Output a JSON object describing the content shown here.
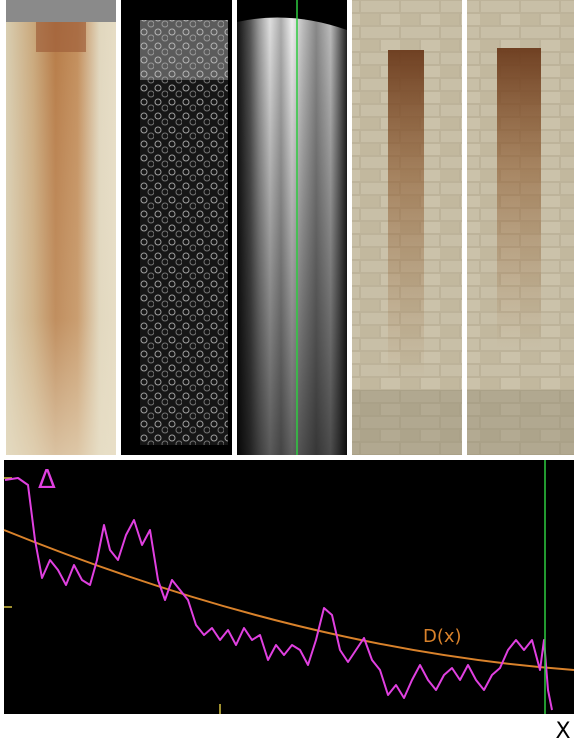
{
  "figure": {
    "labels": {
      "delta": "Δ",
      "d_of_x": "D(x)",
      "x_axis": "X"
    }
  }
}
